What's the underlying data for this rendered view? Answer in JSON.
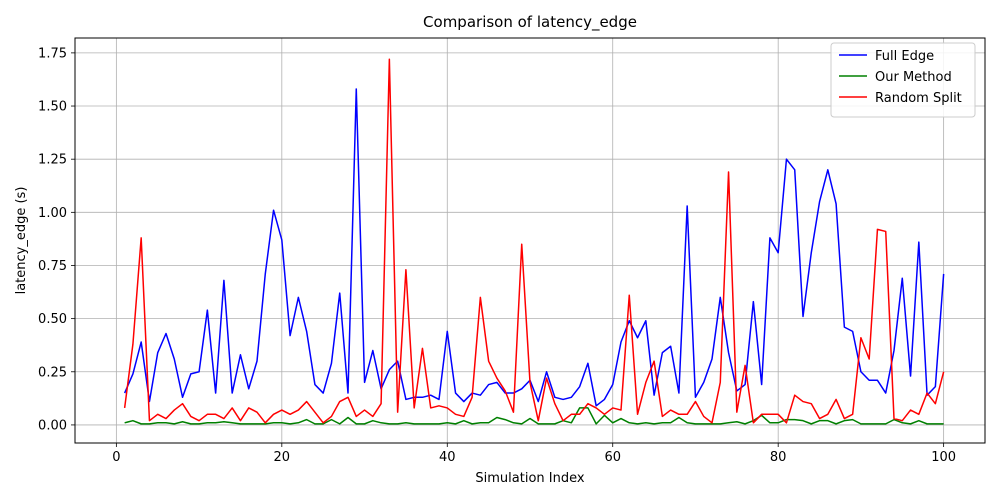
{
  "chart_data": {
    "type": "line",
    "title": "Comparison of latency_edge",
    "xlabel": "Simulation Index",
    "ylabel": "latency_edge (s)",
    "xlim": [
      -5,
      105
    ],
    "ylim": [
      -0.085,
      1.82
    ],
    "xticks": [
      0,
      20,
      40,
      60,
      80,
      100
    ],
    "yticks": [
      0.0,
      0.25,
      0.5,
      0.75,
      1.0,
      1.25,
      1.5,
      1.75
    ],
    "ytick_labels": [
      "0.00",
      "0.25",
      "0.50",
      "0.75",
      "1.00",
      "1.25",
      "1.50",
      "1.75"
    ],
    "grid": true,
    "legend_position": "top-right",
    "x": [
      1,
      2,
      3,
      4,
      5,
      6,
      7,
      8,
      9,
      10,
      11,
      12,
      13,
      14,
      15,
      16,
      17,
      18,
      19,
      20,
      21,
      22,
      23,
      24,
      25,
      26,
      27,
      28,
      29,
      30,
      31,
      32,
      33,
      34,
      35,
      36,
      37,
      38,
      39,
      40,
      41,
      42,
      43,
      44,
      45,
      46,
      47,
      48,
      49,
      50,
      51,
      52,
      53,
      54,
      55,
      56,
      57,
      58,
      59,
      60,
      61,
      62,
      63,
      64,
      65,
      66,
      67,
      68,
      69,
      70,
      71,
      72,
      73,
      74,
      75,
      76,
      77,
      78,
      79,
      80,
      81,
      82,
      83,
      84,
      85,
      86,
      87,
      88,
      89,
      90,
      91,
      92,
      93,
      94,
      95,
      96,
      97,
      98,
      99,
      100
    ],
    "series": [
      {
        "name": "Full Edge",
        "color": "#0000ff",
        "values": [
          0.15,
          0.24,
          0.39,
          0.11,
          0.34,
          0.43,
          0.31,
          0.13,
          0.24,
          0.25,
          0.54,
          0.15,
          0.68,
          0.15,
          0.33,
          0.17,
          0.3,
          0.71,
          1.01,
          0.87,
          0.42,
          0.6,
          0.44,
          0.19,
          0.15,
          0.29,
          0.62,
          0.15,
          1.58,
          0.2,
          0.35,
          0.17,
          0.26,
          0.3,
          0.12,
          0.13,
          0.13,
          0.14,
          0.12,
          0.44,
          0.15,
          0.11,
          0.15,
          0.14,
          0.19,
          0.2,
          0.15,
          0.15,
          0.17,
          0.21,
          0.11,
          0.25,
          0.13,
          0.12,
          0.13,
          0.18,
          0.29,
          0.09,
          0.12,
          0.19,
          0.39,
          0.49,
          0.41,
          0.49,
          0.14,
          0.34,
          0.37,
          0.15,
          1.03,
          0.13,
          0.2,
          0.31,
          0.6,
          0.34,
          0.16,
          0.19,
          0.58,
          0.19,
          0.88,
          0.81,
          1.25,
          1.2,
          0.51,
          0.81,
          1.05,
          1.2,
          1.04,
          0.46,
          0.44,
          0.25,
          0.21,
          0.21,
          0.15,
          0.35,
          0.69,
          0.23,
          0.86,
          0.14,
          0.18,
          0.71
        ]
      },
      {
        "name": "Our Method",
        "color": "#008000",
        "values": [
          0.01,
          0.02,
          0.005,
          0.005,
          0.01,
          0.01,
          0.005,
          0.015,
          0.005,
          0.005,
          0.01,
          0.01,
          0.015,
          0.01,
          0.005,
          0.005,
          0.005,
          0.005,
          0.01,
          0.01,
          0.005,
          0.01,
          0.025,
          0.005,
          0.005,
          0.025,
          0.005,
          0.035,
          0.005,
          0.005,
          0.02,
          0.01,
          0.005,
          0.005,
          0.01,
          0.005,
          0.005,
          0.005,
          0.005,
          0.01,
          0.005,
          0.02,
          0.005,
          0.01,
          0.01,
          0.035,
          0.025,
          0.01,
          0.005,
          0.03,
          0.005,
          0.005,
          0.005,
          0.02,
          0.01,
          0.08,
          0.08,
          0.005,
          0.045,
          0.01,
          0.03,
          0.01,
          0.005,
          0.01,
          0.005,
          0.01,
          0.01,
          0.035,
          0.01,
          0.005,
          0.005,
          0.005,
          0.005,
          0.01,
          0.015,
          0.005,
          0.02,
          0.045,
          0.01,
          0.01,
          0.025,
          0.025,
          0.02,
          0.005,
          0.02,
          0.02,
          0.005,
          0.02,
          0.025,
          0.005,
          0.005,
          0.005,
          0.005,
          0.025,
          0.01,
          0.005,
          0.02,
          0.005,
          0.005,
          0.005
        ]
      },
      {
        "name": "Random Split",
        "color": "#ff0000",
        "values": [
          0.08,
          0.38,
          0.88,
          0.02,
          0.05,
          0.03,
          0.07,
          0.1,
          0.04,
          0.02,
          0.05,
          0.05,
          0.03,
          0.08,
          0.02,
          0.08,
          0.06,
          0.01,
          0.05,
          0.07,
          0.05,
          0.07,
          0.11,
          0.06,
          0.01,
          0.04,
          0.11,
          0.13,
          0.04,
          0.07,
          0.04,
          0.1,
          1.72,
          0.06,
          0.73,
          0.08,
          0.36,
          0.08,
          0.09,
          0.08,
          0.05,
          0.04,
          0.13,
          0.6,
          0.3,
          0.22,
          0.16,
          0.06,
          0.85,
          0.2,
          0.02,
          0.22,
          0.1,
          0.02,
          0.05,
          0.05,
          0.1,
          0.08,
          0.05,
          0.08,
          0.07,
          0.61,
          0.05,
          0.2,
          0.3,
          0.04,
          0.07,
          0.05,
          0.05,
          0.11,
          0.04,
          0.01,
          0.2,
          1.19,
          0.06,
          0.28,
          0.01,
          0.05,
          0.05,
          0.05,
          0.01,
          0.14,
          0.11,
          0.1,
          0.03,
          0.05,
          0.12,
          0.03,
          0.05,
          0.41,
          0.31,
          0.92,
          0.91,
          0.03,
          0.02,
          0.07,
          0.05,
          0.15,
          0.1,
          0.25
        ]
      }
    ]
  }
}
